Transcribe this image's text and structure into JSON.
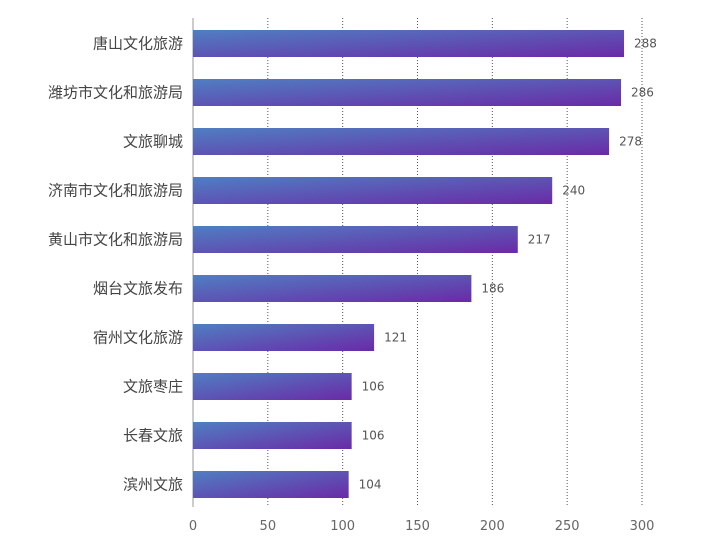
{
  "chart_data": {
    "type": "bar",
    "orientation": "horizontal",
    "title": "",
    "xlabel": "",
    "ylabel": "",
    "categories": [
      "唐山文化旅游",
      "潍坊市文化和旅游局",
      "文旅聊城",
      "济南市文化和旅游局",
      "黄山市文化和旅游局",
      "烟台文旅发布",
      "宿州文化旅游",
      "文旅枣庄",
      "长春文旅",
      "滨州文旅"
    ],
    "values": [
      288,
      286,
      278,
      240,
      217,
      186,
      121,
      106,
      106,
      104
    ],
    "xlim": [
      0,
      300
    ],
    "ticks": [
      0,
      50,
      100,
      150,
      200,
      250,
      300
    ],
    "grid": "vertical dotted",
    "legend": "none",
    "colors": {
      "bar_start": "#4f7fc2",
      "bar_end": "#6a2aa6",
      "grid": "#555555",
      "axis": "#999999"
    }
  }
}
